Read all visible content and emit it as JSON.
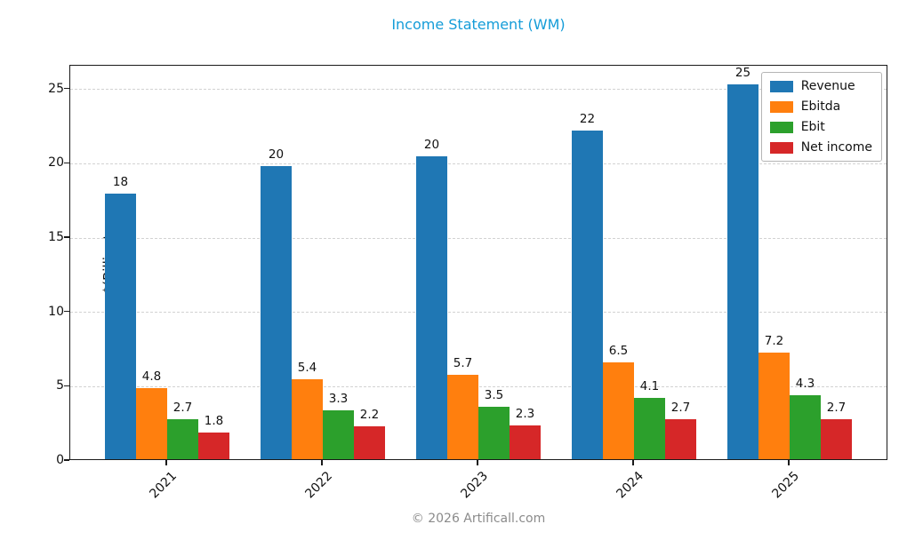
{
  "title": {
    "text": "Income Statement (WM)",
    "color": "#149cd8"
  },
  "footer": {
    "text": "© 2026 Artificall.com",
    "color": "#8b8b8b"
  },
  "chart_data": {
    "type": "bar",
    "title": "Income Statement (WM)",
    "xlabel": "",
    "ylabel": "$(Billion)",
    "categories": [
      "2021",
      "2022",
      "2023",
      "2024",
      "2025"
    ],
    "series": [
      {
        "name": "Revenue",
        "color": "#1f77b4",
        "values": [
          17.9,
          19.7,
          20.4,
          22.1,
          25.2
        ],
        "labels": [
          "18",
          "20",
          "20",
          "22",
          "25"
        ]
      },
      {
        "name": "Ebitda",
        "color": "#ff7f0e",
        "values": [
          4.8,
          5.4,
          5.7,
          6.5,
          7.2
        ],
        "labels": [
          "4.8",
          "5.4",
          "5.7",
          "6.5",
          "7.2"
        ]
      },
      {
        "name": "Ebit",
        "color": "#2ca02c",
        "values": [
          2.7,
          3.3,
          3.5,
          4.1,
          4.3
        ],
        "labels": [
          "2.7",
          "3.3",
          "3.5",
          "4.1",
          "4.3"
        ]
      },
      {
        "name": "Net income",
        "color": "#d62728",
        "values": [
          1.8,
          2.2,
          2.3,
          2.7,
          2.7
        ],
        "labels": [
          "1.8",
          "2.2",
          "2.3",
          "2.7",
          "2.7"
        ]
      }
    ],
    "ylim": [
      0,
      26.6
    ],
    "yticks": [
      0,
      5,
      10,
      15,
      20,
      25
    ],
    "grid": "horizontal-dashed",
    "legend_position": "upper-right",
    "xtick_rotation": 45
  }
}
